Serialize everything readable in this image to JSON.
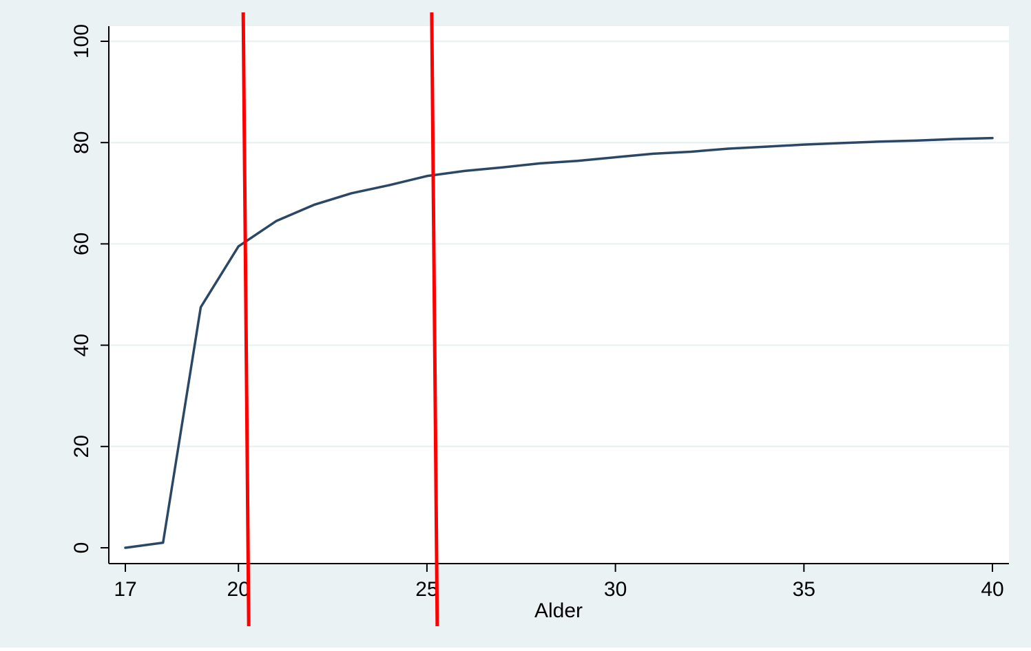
{
  "chart_data": {
    "type": "line",
    "title": "",
    "xlabel": "Alder",
    "ylabel": "",
    "xlim": [
      17,
      40
    ],
    "ylim": [
      0,
      100
    ],
    "xticks": [
      17,
      20,
      25,
      30,
      35,
      40
    ],
    "yticks": [
      0,
      20,
      40,
      60,
      80,
      100
    ],
    "grid": "horizontal",
    "series": [
      {
        "name": "",
        "color": "#2a4766",
        "x": [
          17,
          18,
          19,
          20,
          21,
          22,
          23,
          24,
          25,
          26,
          27,
          28,
          29,
          30,
          31,
          32,
          33,
          34,
          35,
          36,
          37,
          38,
          39,
          40
        ],
        "y": [
          0,
          1,
          47.5,
          59.5,
          64.5,
          67.7,
          70,
          71.6,
          73.4,
          74.4,
          75.1,
          75.9,
          76.4,
          77.1,
          77.8,
          78.2,
          78.8,
          79.2,
          79.6,
          79.9,
          80.2,
          80.4,
          80.7,
          80.9
        ]
      }
    ],
    "vertical_markers": [
      {
        "x": 20.2,
        "color": "#ff0000"
      },
      {
        "x": 25.2,
        "color": "#ff0000"
      }
    ],
    "colors": {
      "background": "#eaf2f3",
      "plot_area": "#ffffff",
      "gridline": "#eaf2f3",
      "axis": "#000000"
    }
  }
}
